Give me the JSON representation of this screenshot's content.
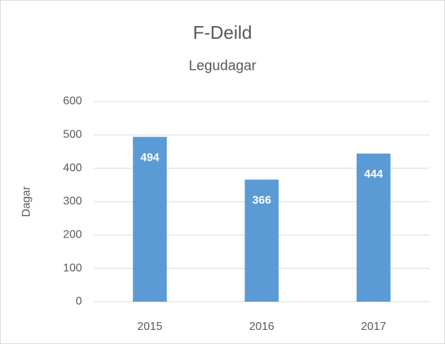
{
  "chart_data": {
    "type": "bar",
    "title": "F-Deild",
    "subtitle": "Legudagar",
    "y_label": "Dagar",
    "categories": [
      "2015",
      "2016",
      "2017"
    ],
    "values": [
      494,
      366,
      444
    ],
    "color": "#5b9bd5",
    "ylim": [
      0,
      600
    ],
    "yticks": [
      0,
      100,
      200,
      300,
      400,
      500,
      600
    ],
    "grid": true
  }
}
